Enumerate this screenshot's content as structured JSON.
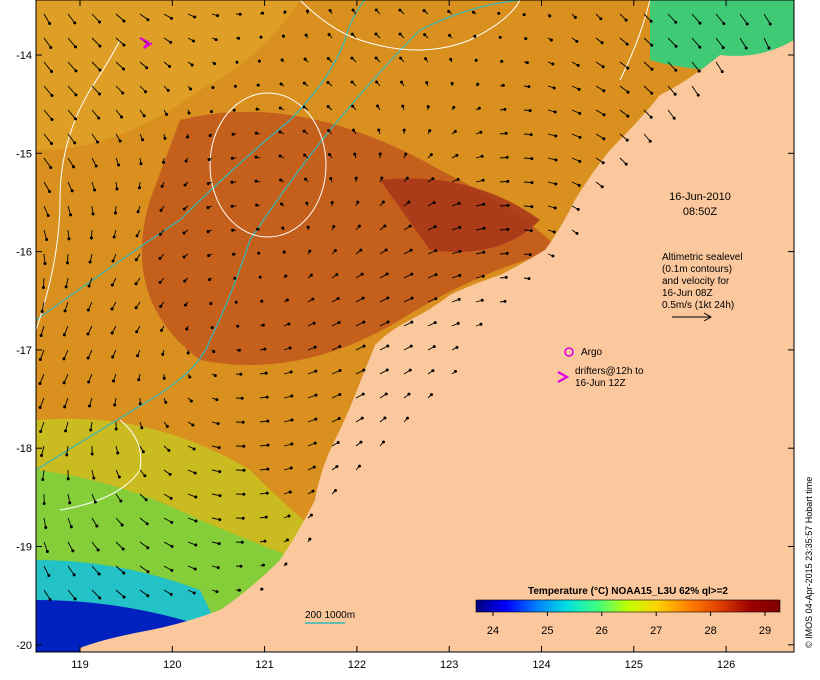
{
  "map": {
    "lon_ticks": [
      "119",
      "120",
      "121",
      "122",
      "123",
      "124",
      "125",
      "126"
    ],
    "lat_ticks": [
      "-14",
      "-15",
      "-16",
      "-17",
      "-18",
      "-19",
      "-20"
    ]
  },
  "annotations": {
    "date": "16-Jun-2010",
    "time": "08:50Z",
    "altimetry_lines": [
      "Altimetric sealevel",
      "(0.1m contours)",
      "and velocity for",
      "16-Jun 08Z",
      "0.5m/s (1kt 24h)"
    ],
    "argo_label": "Argo",
    "drifters_lines": [
      "drifters@12h to",
      "16-Jun 12Z"
    ],
    "isobath_label": "200  1000m"
  },
  "colorbar": {
    "title": "Temperature (°C) NOAA15_L3U 62% ql>=2",
    "ticks": [
      "24",
      "25",
      "26",
      "27",
      "28",
      "29"
    ],
    "colors": [
      "#00007f",
      "#0000ff",
      "#0080ff",
      "#00e0e0",
      "#40ff80",
      "#c0ff00",
      "#ffd000",
      "#ff8000",
      "#e04000",
      "#a00000",
      "#7f0000"
    ]
  },
  "credit": "© IMOS 04-Apr-2015 23:35:57 Hobart time",
  "colors": {
    "land": "#fbc89e",
    "warm": "#c0501a",
    "mid": "#d98a1c",
    "contour": "#ffffff",
    "isobath": "#33b8b8",
    "argo": "#e000e0"
  }
}
